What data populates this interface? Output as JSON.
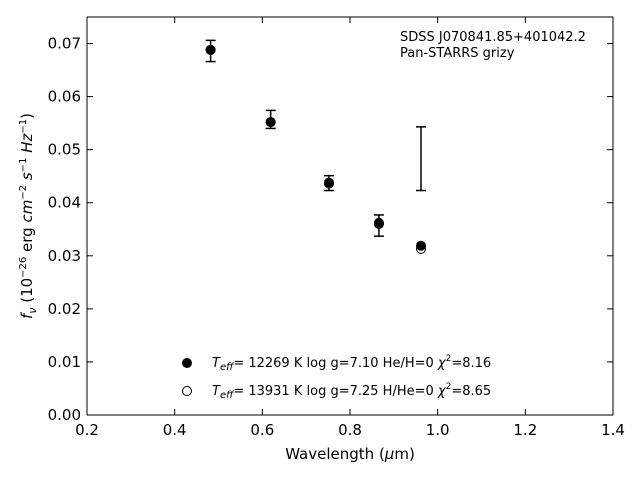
{
  "chart_data": {
    "type": "scatter",
    "xlabel": "Wavelength (μm)",
    "ylabel": "fν (10⁻²⁶ erg cm⁻² s⁻¹ Hz⁻¹)",
    "xlim": [
      0.2,
      1.4
    ],
    "ylim": [
      0.0,
      0.075
    ],
    "xticks": [
      "0.2",
      "0.4",
      "0.6",
      "0.8",
      "1.0",
      "1.2",
      "1.4"
    ],
    "yticks": [
      "0.00",
      "0.01",
      "0.02",
      "0.03",
      "0.04",
      "0.05",
      "0.06",
      "0.07"
    ],
    "grid": false,
    "legend_position": "lower-center",
    "annotations": [
      "SDSS J070841.85+401042.2",
      "Pan-STARRS grizy"
    ],
    "observed": {
      "x": [
        0.482,
        0.619,
        0.752,
        0.866,
        0.962
      ],
      "y": [
        0.0686,
        0.0557,
        0.0437,
        0.0357,
        0.0483
      ],
      "err": [
        0.002,
        0.0017,
        0.0014,
        0.002,
        0.006
      ]
    },
    "series": [
      {
        "name": "Teff= 12269 K  log g=7.10  He/H=0  χ²=8.16",
        "marker": "filled-circle",
        "x": [
          0.482,
          0.619,
          0.752,
          0.866,
          0.962
        ],
        "y": [
          0.0688,
          0.0552,
          0.0438,
          0.0362,
          0.0319
        ]
      },
      {
        "name": "Teff= 13931 K  log g=7.25  H/He=0  χ²=8.65",
        "marker": "open-circle",
        "x": [
          0.482,
          0.619,
          0.752,
          0.866,
          0.962
        ],
        "y": [
          0.0688,
          0.0552,
          0.0436,
          0.036,
          0.0313
        ]
      }
    ],
    "legend": [
      {
        "symbol": "filled-circle",
        "teff": "12269",
        "rest": "= 12269 K  log g=7.10  He/H=0  ",
        "chi": "=8.16"
      },
      {
        "symbol": "open-circle",
        "teff": "13931",
        "rest": "= 13931 K  log g=7.25  H/He=0  ",
        "chi": "=8.65"
      }
    ]
  }
}
